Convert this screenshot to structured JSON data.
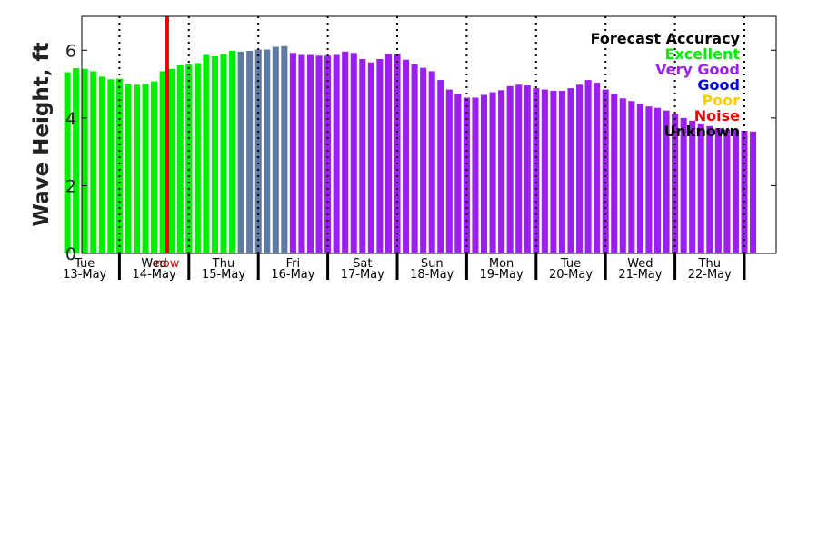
{
  "chart_data": {
    "type": "bar",
    "ylabel": "Wave Height, ft",
    "ylim": [
      0,
      7
    ],
    "yticks": [
      0,
      2,
      4,
      6
    ],
    "days": [
      {
        "name": "Tue",
        "date": "13-May"
      },
      {
        "name": "Wed",
        "date": "14-May"
      },
      {
        "name": "Thu",
        "date": "15-May"
      },
      {
        "name": "Fri",
        "date": "16-May"
      },
      {
        "name": "Sat",
        "date": "17-May"
      },
      {
        "name": "Sun",
        "date": "18-May"
      },
      {
        "name": "Mon",
        "date": "19-May"
      },
      {
        "name": "Tue",
        "date": "20-May"
      },
      {
        "name": "Wed",
        "date": "21-May"
      },
      {
        "name": "Thu",
        "date": "22-May"
      }
    ],
    "now_label": "now",
    "now_hour": 40.5,
    "bar_interval_hours": 3,
    "start_day_hour": 6,
    "legend": {
      "title": "Forecast Accuracy",
      "entries": [
        {
          "label": "Excellent",
          "color": "#00ee00"
        },
        {
          "label": "Very Good",
          "color": "#9b1ff0"
        },
        {
          "label": "Good",
          "color": "#0000dd"
        },
        {
          "label": "Poor",
          "color": "#ffcc00"
        },
        {
          "label": "Noise",
          "color": "#ee0000"
        },
        {
          "label": "Unknown",
          "color": "#000000"
        }
      ]
    },
    "series_colors": {
      "excellent": "#00ee00",
      "transition": "#5f7aa0",
      "very_good": "#9b1ff0",
      "now": "#ee0000"
    },
    "values": [
      5.35,
      5.47,
      5.45,
      5.38,
      5.22,
      5.14,
      5.16,
      5.0,
      4.98,
      5.0,
      5.08,
      5.38,
      5.45,
      5.55,
      5.58,
      5.62,
      5.86,
      5.82,
      5.88,
      5.98,
      5.96,
      5.98,
      6.02,
      6.02,
      6.1,
      6.12,
      5.92,
      5.86,
      5.86,
      5.84,
      5.84,
      5.86,
      5.96,
      5.92,
      5.74,
      5.64,
      5.74,
      5.88,
      5.9,
      5.72,
      5.58,
      5.48,
      5.38,
      5.12,
      4.84,
      4.7,
      4.6,
      4.6,
      4.68,
      4.76,
      4.82,
      4.94,
      4.98,
      4.96,
      4.88,
      4.84,
      4.8,
      4.8,
      4.88,
      4.98,
      5.12,
      5.04,
      4.84,
      4.7,
      4.58,
      4.5,
      4.42,
      4.34,
      4.3,
      4.22,
      4.12,
      4.0,
      3.92,
      3.84,
      3.76,
      3.7,
      3.66,
      3.64,
      3.62,
      3.6
    ],
    "categories_accuracy": [
      "excellent",
      "excellent",
      "excellent",
      "excellent",
      "excellent",
      "excellent",
      "excellent",
      "excellent",
      "excellent",
      "excellent",
      "excellent",
      "excellent",
      "excellent",
      "excellent",
      "excellent",
      "excellent",
      "excellent",
      "excellent",
      "excellent",
      "excellent",
      "transition",
      "transition",
      "transition",
      "transition",
      "transition",
      "transition",
      "very_good",
      "very_good",
      "very_good",
      "very_good",
      "very_good",
      "very_good",
      "very_good",
      "very_good",
      "very_good",
      "very_good",
      "very_good",
      "very_good",
      "very_good",
      "very_good",
      "very_good",
      "very_good",
      "very_good",
      "very_good",
      "very_good",
      "very_good",
      "very_good",
      "very_good",
      "very_good",
      "very_good",
      "very_good",
      "very_good",
      "very_good",
      "very_good",
      "very_good",
      "very_good",
      "very_good",
      "very_good",
      "very_good",
      "very_good",
      "very_good",
      "very_good",
      "very_good",
      "very_good",
      "very_good",
      "very_good",
      "very_good",
      "very_good",
      "very_good",
      "very_good",
      "very_good",
      "very_good",
      "very_good",
      "very_good",
      "very_good",
      "very_good",
      "very_good",
      "very_good",
      "very_good",
      "very_good"
    ]
  }
}
